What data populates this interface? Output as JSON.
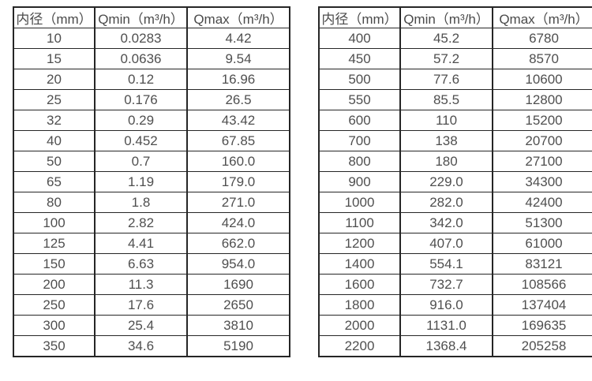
{
  "page": {
    "background_color": "#ffffff",
    "text_color": "#4f4f4f",
    "border_color": "#262626"
  },
  "tables": [
    {
      "name": "flow-table-small-diameters",
      "headers": [
        "内径（mm）",
        "Qmin（m³/h）",
        "Qmax（m³/h）"
      ],
      "rows": [
        [
          "10",
          "0.0283",
          "4.42"
        ],
        [
          "15",
          "0.0636",
          "9.54"
        ],
        [
          "20",
          "0.12",
          "16.96"
        ],
        [
          "25",
          "0.176",
          "26.5"
        ],
        [
          "32",
          "0.29",
          "43.42"
        ],
        [
          "40",
          "0.452",
          "67.85"
        ],
        [
          "50",
          "0.7",
          "160.0"
        ],
        [
          "65",
          "1.19",
          "179.0"
        ],
        [
          "80",
          "1.8",
          "271.0"
        ],
        [
          "100",
          "2.82",
          "424.0"
        ],
        [
          "125",
          "4.41",
          "662.0"
        ],
        [
          "150",
          "6.63",
          "954.0"
        ],
        [
          "200",
          "11.3",
          "1690"
        ],
        [
          "250",
          "17.6",
          "2650"
        ],
        [
          "300",
          "25.4",
          "3810"
        ],
        [
          "350",
          "34.6",
          "5190"
        ]
      ]
    },
    {
      "name": "flow-table-large-diameters",
      "headers": [
        "内径（mm）",
        "Qmin（m³/h）",
        "Qmax（m³/h）"
      ],
      "rows": [
        [
          "400",
          "45.2",
          "6780"
        ],
        [
          "450",
          "57.2",
          "8570"
        ],
        [
          "500",
          "77.6",
          "10600"
        ],
        [
          "550",
          "85.5",
          "12800"
        ],
        [
          "600",
          "110",
          "15200"
        ],
        [
          "700",
          "138",
          "20700"
        ],
        [
          "800",
          "180",
          "27100"
        ],
        [
          "900",
          "229.0",
          "34300"
        ],
        [
          "1000",
          "282.0",
          "42400"
        ],
        [
          "1100",
          "342.0",
          "51300"
        ],
        [
          "1200",
          "407.0",
          "61000"
        ],
        [
          "1400",
          "554.1",
          "83121"
        ],
        [
          "1600",
          "732.7",
          "108566"
        ],
        [
          "1800",
          "916.0",
          "137404"
        ],
        [
          "2000",
          "1131.0",
          "169635"
        ],
        [
          "2200",
          "1368.4",
          "205258"
        ]
      ]
    }
  ]
}
